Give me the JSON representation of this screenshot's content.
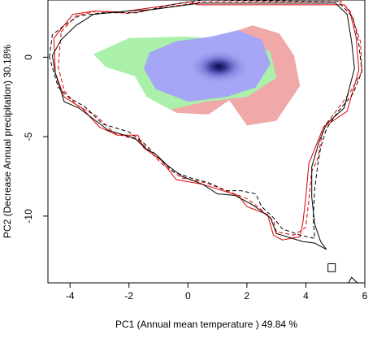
{
  "chart_data": {
    "type": "contour-density",
    "xlabel": "PC1 (Annual mean temperature ) 49.84 %",
    "ylabel": "PC2 (Decrease Annual precipitation) 30.18%",
    "xlim": [
      -4.75,
      6.0
    ],
    "ylim": [
      -14.2,
      3.6
    ],
    "x_ticks": [
      -4,
      -2,
      0,
      2,
      4,
      6
    ],
    "y_ticks": [
      0,
      -5,
      -10
    ],
    "grid": false,
    "legend": "none",
    "colors": {
      "green_zone": "#aaf0aa",
      "red_zone": "#f0a8a8",
      "blue_overlap": "#a6a6f6",
      "density_core": "#10104e",
      "envelope_red": "#e00000",
      "envelope_black": "#000000"
    },
    "red_zone": [
      [
        -0.7,
        -0.1
      ],
      [
        -0.5,
        0.8
      ],
      [
        0.9,
        1.2
      ],
      [
        2.2,
        2.0
      ],
      [
        3.1,
        1.5
      ],
      [
        3.6,
        0.1
      ],
      [
        3.8,
        -1.8
      ],
      [
        3.0,
        -4.0
      ],
      [
        2.0,
        -4.3
      ],
      [
        1.4,
        -2.7
      ],
      [
        0.7,
        -3.6
      ],
      [
        -0.4,
        -3.5
      ],
      [
        -1.0,
        -2.8
      ],
      [
        -1.4,
        -1.0
      ]
    ],
    "green_zone": [
      [
        -3.2,
        0.2
      ],
      [
        -2.0,
        1.2
      ],
      [
        -0.1,
        1.3
      ],
      [
        2.2,
        1.0
      ],
      [
        2.8,
        0.3
      ],
      [
        3.0,
        -1.3
      ],
      [
        2.0,
        -2.5
      ],
      [
        0.6,
        -2.8
      ],
      [
        -0.6,
        -3.3
      ],
      [
        -1.4,
        -2.5
      ],
      [
        -1.8,
        -1.2
      ],
      [
        -2.8,
        -0.6
      ]
    ],
    "blue_zone": [
      [
        -1.3,
        0.3
      ],
      [
        -0.4,
        1.0
      ],
      [
        0.8,
        1.3
      ],
      [
        1.7,
        1.7
      ],
      [
        2.5,
        1.1
      ],
      [
        2.8,
        -0.4
      ],
      [
        2.3,
        -1.9
      ],
      [
        1.3,
        -2.5
      ],
      [
        0.0,
        -2.8
      ],
      [
        -1.1,
        -2.0
      ],
      [
        -1.5,
        -0.7
      ]
    ],
    "density_core": {
      "center": [
        1.05,
        -0.6
      ],
      "spread": [
        2.1,
        2.2
      ]
    },
    "series": [
      {
        "name": "",
        "color": "red",
        "dash": "solid",
        "points": [
          [
            -4.55,
            1.2
          ],
          [
            -3.9,
            2.7
          ],
          [
            -3.2,
            2.9
          ],
          [
            -2.3,
            2.85
          ],
          [
            -0.9,
            3.2
          ],
          [
            0.1,
            3.5
          ],
          [
            0.3,
            3.3
          ],
          [
            5.3,
            3.3
          ],
          [
            5.5,
            2.8
          ],
          [
            5.7,
            1.3
          ],
          [
            5.8,
            -0.8
          ],
          [
            5.4,
            -3.4
          ],
          [
            4.6,
            -4.4
          ],
          [
            4.4,
            -5.3
          ],
          [
            4.1,
            -6.7
          ],
          [
            4.0,
            -8.8
          ],
          [
            3.9,
            -10.4
          ],
          [
            3.8,
            -11.3
          ],
          [
            3.2,
            -11.5
          ],
          [
            2.9,
            -11.2
          ],
          [
            2.7,
            -9.9
          ],
          [
            2.0,
            -9.4
          ],
          [
            1.7,
            -8.7
          ],
          [
            0.5,
            -8.0
          ],
          [
            -0.4,
            -7.7
          ],
          [
            -0.9,
            -6.5
          ],
          [
            -1.5,
            -5.7
          ],
          [
            -1.7,
            -4.9
          ],
          [
            -2.4,
            -4.9
          ],
          [
            -3.0,
            -4.4
          ],
          [
            -3.6,
            -3.2
          ],
          [
            -4.2,
            -2.5
          ],
          [
            -4.5,
            -1.0
          ],
          [
            -4.55,
            1.2
          ]
        ]
      },
      {
        "name": "",
        "color": "red",
        "dash": "dashed",
        "points": [
          [
            -4.3,
            1.6
          ],
          [
            -3.8,
            2.6
          ],
          [
            -3.1,
            2.9
          ],
          [
            -2.0,
            2.75
          ],
          [
            -0.9,
            3.1
          ],
          [
            0.2,
            3.4
          ],
          [
            0.5,
            3.5
          ],
          [
            5.2,
            3.5
          ],
          [
            5.5,
            2.9
          ],
          [
            5.85,
            1.0
          ],
          [
            5.9,
            -0.9
          ],
          [
            5.5,
            -2.2
          ],
          [
            4.9,
            -3.7
          ],
          [
            4.6,
            -4.4
          ],
          [
            4.4,
            -6.4
          ],
          [
            4.2,
            -7.2
          ],
          [
            4.1,
            -9.0
          ],
          [
            4.0,
            -10.7
          ],
          [
            3.6,
            -11.2
          ],
          [
            3.0,
            -11.0
          ],
          [
            2.9,
            -10.3
          ],
          [
            2.5,
            -9.6
          ],
          [
            2.0,
            -8.9
          ],
          [
            1.3,
            -8.4
          ],
          [
            0.6,
            -7.9
          ],
          [
            -0.2,
            -7.6
          ],
          [
            -0.9,
            -6.7
          ],
          [
            -1.3,
            -5.9
          ],
          [
            -1.7,
            -5.2
          ],
          [
            -2.5,
            -4.8
          ],
          [
            -3.1,
            -3.7
          ],
          [
            -3.8,
            -3.0
          ],
          [
            -4.2,
            -2.1
          ],
          [
            -4.4,
            -0.6
          ],
          [
            -4.3,
            1.6
          ]
        ]
      },
      {
        "name": "",
        "color": "black",
        "dash": "solid",
        "points": [
          [
            -4.6,
            0.1
          ],
          [
            -4.3,
            1.1
          ],
          [
            -3.8,
            2.0
          ],
          [
            -3.2,
            2.7
          ],
          [
            -2.1,
            2.9
          ],
          [
            -1.2,
            3.0
          ],
          [
            0.4,
            3.4
          ],
          [
            5.0,
            3.4
          ],
          [
            5.4,
            2.7
          ],
          [
            5.55,
            1.0
          ],
          [
            5.65,
            -0.7
          ],
          [
            5.3,
            -3.2
          ],
          [
            4.7,
            -4.2
          ],
          [
            4.45,
            -5.3
          ],
          [
            4.2,
            -6.9
          ],
          [
            4.2,
            -8.8
          ],
          [
            4.3,
            -10.5
          ],
          [
            4.5,
            -11.6
          ],
          [
            4.7,
            -12.1
          ],
          [
            4.3,
            -11.7
          ],
          [
            3.9,
            -11.6
          ],
          [
            3.0,
            -11.1
          ],
          [
            2.8,
            -10.1
          ],
          [
            2.2,
            -9.3
          ],
          [
            1.6,
            -8.7
          ],
          [
            1.0,
            -8.6
          ],
          [
            0.5,
            -8.0
          ],
          [
            -0.2,
            -7.5
          ],
          [
            -0.7,
            -6.8
          ],
          [
            -1.1,
            -6.1
          ],
          [
            -1.4,
            -5.8
          ],
          [
            -1.8,
            -5.1
          ],
          [
            -2.7,
            -4.6
          ],
          [
            -3.2,
            -3.9
          ],
          [
            -3.7,
            -3.2
          ],
          [
            -4.2,
            -2.8
          ],
          [
            -4.5,
            -1.0
          ],
          [
            -4.6,
            0.1
          ]
        ]
      },
      {
        "name": "",
        "color": "black",
        "dash": "dashed",
        "points": [
          [
            -4.7,
            0.0
          ],
          [
            -4.6,
            1.4
          ],
          [
            -4.2,
            2.0
          ],
          [
            -3.7,
            2.6
          ],
          [
            -2.9,
            2.8
          ],
          [
            -1.7,
            2.8
          ],
          [
            -0.6,
            3.3
          ],
          [
            0.5,
            3.6
          ],
          [
            5.1,
            3.5
          ],
          [
            5.6,
            2.5
          ],
          [
            5.8,
            0.8
          ],
          [
            5.9,
            -0.9
          ],
          [
            5.6,
            -2.3
          ],
          [
            5.1,
            -3.4
          ],
          [
            4.7,
            -4.5
          ],
          [
            4.5,
            -5.7
          ],
          [
            4.4,
            -6.8
          ],
          [
            4.3,
            -8.3
          ],
          [
            4.25,
            -10.1
          ],
          [
            4.3,
            -11.4
          ],
          [
            3.8,
            -11.2
          ],
          [
            3.2,
            -10.8
          ],
          [
            2.9,
            -10.1
          ],
          [
            2.5,
            -9.4
          ],
          [
            2.3,
            -8.6
          ],
          [
            1.8,
            -8.4
          ],
          [
            1.3,
            -8.4
          ],
          [
            0.7,
            -7.9
          ],
          [
            0.1,
            -7.6
          ],
          [
            -0.5,
            -7.2
          ],
          [
            -1.0,
            -6.3
          ],
          [
            -1.5,
            -5.4
          ],
          [
            -2.0,
            -4.7
          ],
          [
            -2.9,
            -4.2
          ],
          [
            -3.5,
            -3.1
          ],
          [
            -4.0,
            -2.6
          ],
          [
            -4.4,
            -1.9
          ],
          [
            -4.7,
            0.0
          ]
        ]
      },
      {
        "name": "",
        "color": "black",
        "dash": "solid",
        "points": [
          [
            4.75,
            -13.0
          ],
          [
            5.0,
            -13.0
          ],
          [
            5.0,
            -13.5
          ],
          [
            4.75,
            -13.5
          ],
          [
            4.75,
            -13.0
          ]
        ]
      },
      {
        "name": "",
        "color": "black",
        "dash": "solid",
        "points": [
          [
            5.45,
            -14.2
          ],
          [
            5.55,
            -13.85
          ],
          [
            5.75,
            -14.2
          ]
        ]
      }
    ]
  }
}
